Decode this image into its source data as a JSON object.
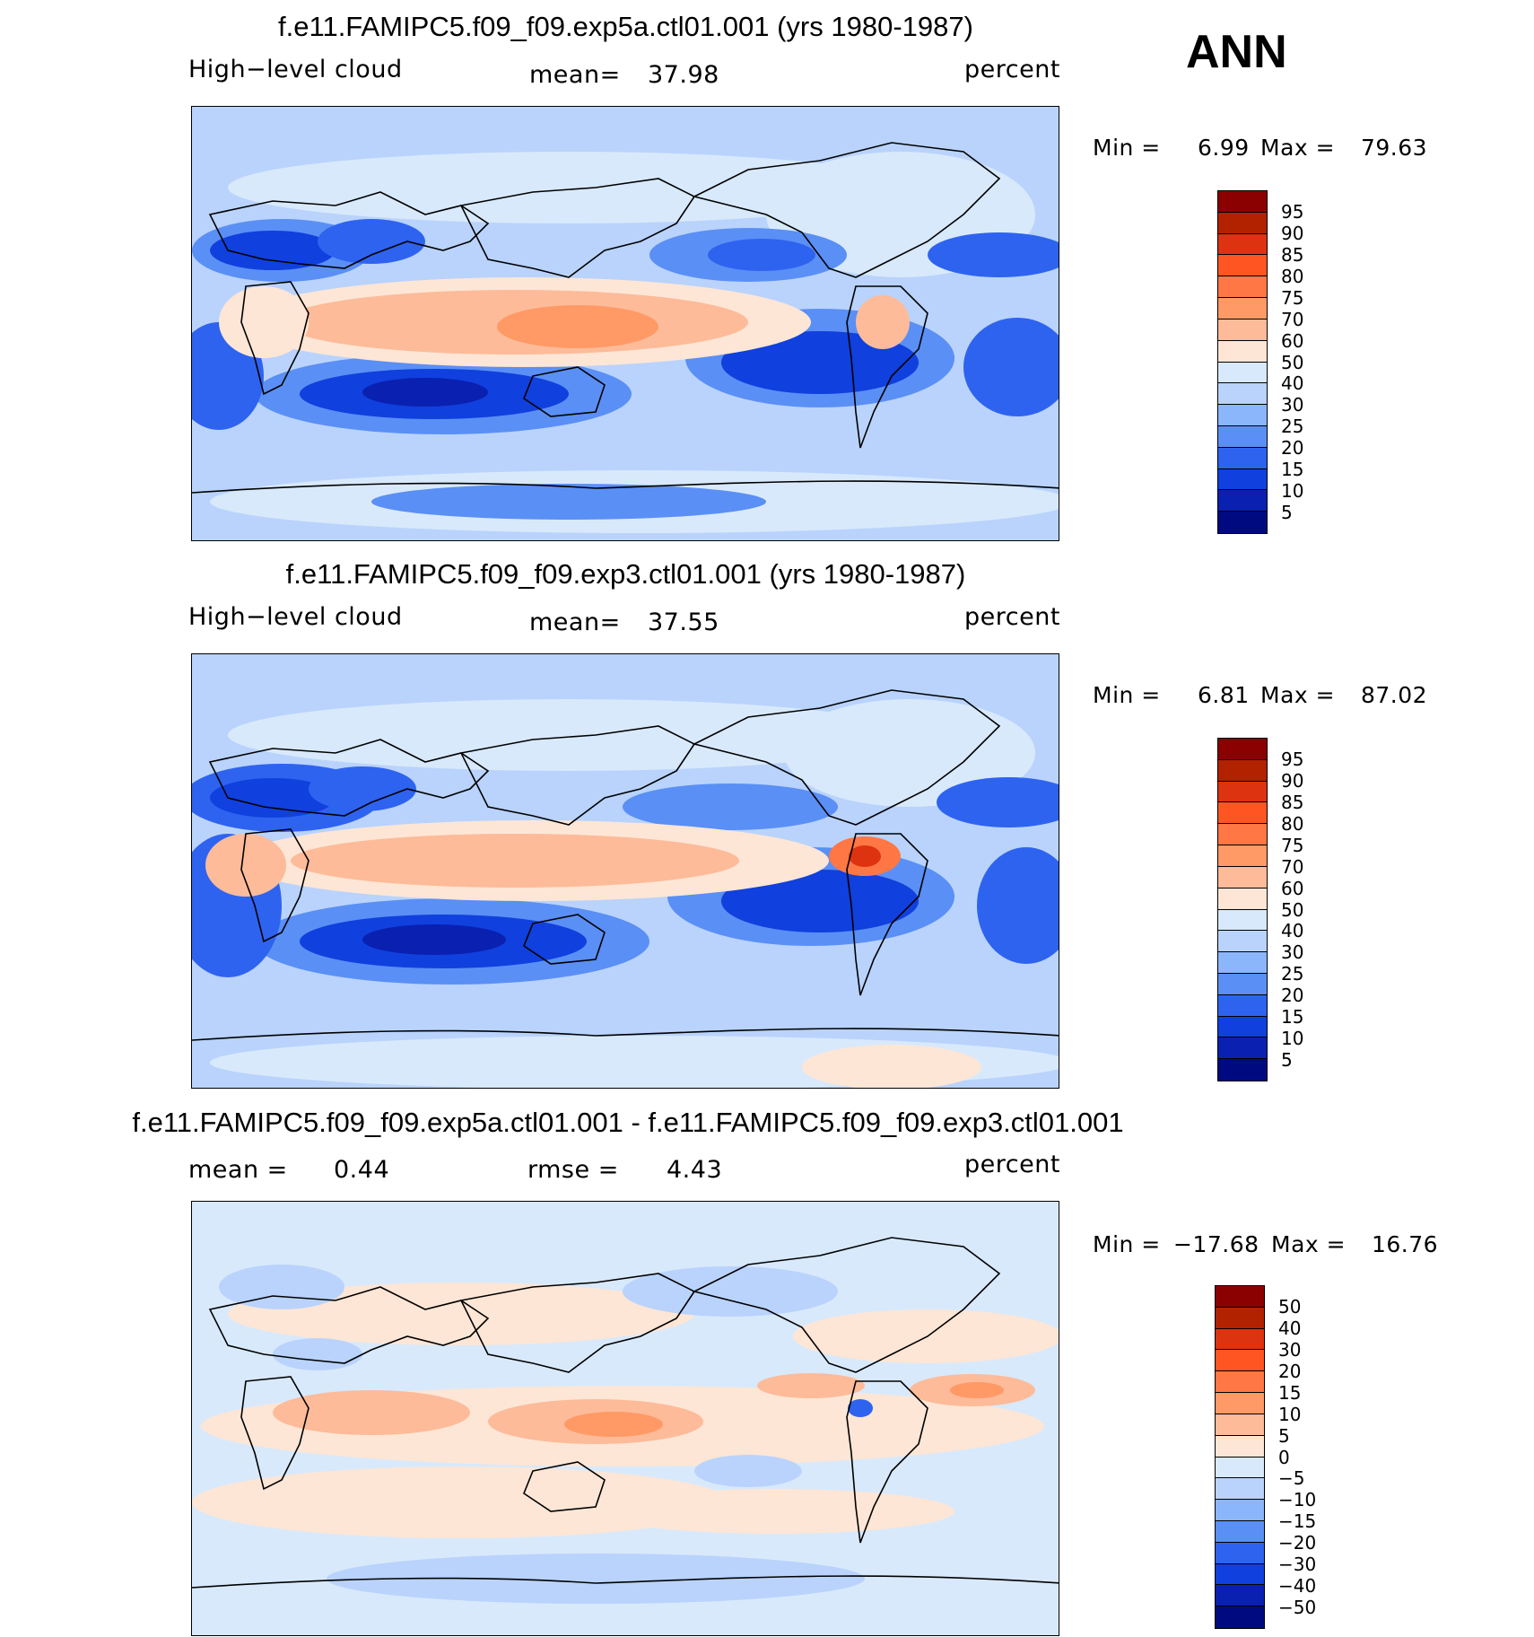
{
  "header": {
    "season": "ANN"
  },
  "chart_data": [
    {
      "type": "heatmap",
      "title": "f.e11.FAMIPC5.f09_f09.exp5a.ctl01.001 (yrs 1980-1987)",
      "variable": "High−level cloud",
      "units": "percent",
      "mean_label": "mean=",
      "mean_value": "37.98",
      "min_label": "Min =",
      "min_value": "6.99",
      "max_label": "Max =",
      "max_value": "79.63",
      "levels": [
        "95",
        "90",
        "85",
        "80",
        "75",
        "70",
        "60",
        "50",
        "40",
        "30",
        "25",
        "20",
        "15",
        "10",
        "5"
      ],
      "colors": [
        "#8b0000",
        "#b22200",
        "#dd3311",
        "#ff5522",
        "#ff7744",
        "#ff9966",
        "#fdbb99",
        "#fde6d6",
        "#d8e9fb",
        "#b9d3fc",
        "#8cb6fb",
        "#5a8ff5",
        "#2e63f0",
        "#1040dd",
        "#0a20b0",
        "#000a80"
      ]
    },
    {
      "type": "heatmap",
      "title": "f.e11.FAMIPC5.f09_f09.exp3.ctl01.001 (yrs 1980-1987)",
      "variable": "High−level cloud",
      "units": "percent",
      "mean_label": "mean=",
      "mean_value": "37.55",
      "min_label": "Min =",
      "min_value": "6.81",
      "max_label": "Max =",
      "max_value": "87.02",
      "levels": [
        "95",
        "90",
        "85",
        "80",
        "75",
        "70",
        "60",
        "50",
        "40",
        "30",
        "25",
        "20",
        "15",
        "10",
        "5"
      ],
      "colors": [
        "#8b0000",
        "#b22200",
        "#dd3311",
        "#ff5522",
        "#ff7744",
        "#ff9966",
        "#fdbb99",
        "#fde6d6",
        "#d8e9fb",
        "#b9d3fc",
        "#8cb6fb",
        "#5a8ff5",
        "#2e63f0",
        "#1040dd",
        "#0a20b0",
        "#000a80"
      ]
    },
    {
      "type": "heatmap",
      "title": "f.e11.FAMIPC5.f09_f09.exp5a.ctl01.001 - f.e11.FAMIPC5.f09_f09.exp3.ctl01.001",
      "units": "percent",
      "mean_label": "mean =",
      "mean_value": "0.44",
      "rmse_label": "rmse =",
      "rmse_value": "4.43",
      "min_label": "Min =",
      "min_value": "−17.68",
      "max_label": "Max =",
      "max_value": "16.76",
      "levels": [
        "50",
        "40",
        "30",
        "20",
        "15",
        "10",
        "5",
        "0",
        "−5",
        "−10",
        "−15",
        "−20",
        "−30",
        "−40",
        "−50"
      ],
      "colors": [
        "#8b0000",
        "#b22200",
        "#dd3311",
        "#ff5522",
        "#ff7744",
        "#ff9966",
        "#fdbb99",
        "#fde6d6",
        "#d8e9fb",
        "#b9d3fc",
        "#8cb6fb",
        "#5a8ff5",
        "#2e63f0",
        "#1040dd",
        "#0a20b0",
        "#000a80"
      ]
    }
  ]
}
